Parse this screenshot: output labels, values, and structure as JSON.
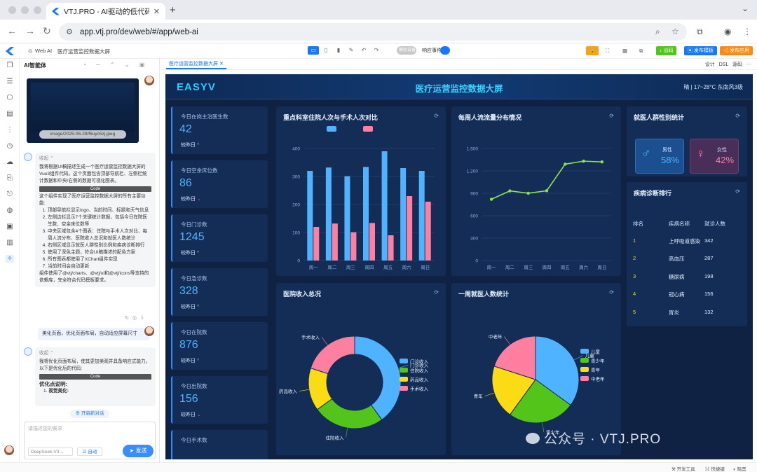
{
  "browser": {
    "tab_title": "VTJ.PRO - AI驱动的低代码开发",
    "url": "app.vtj.pro/dev/web/#/app/web-ai"
  },
  "toolbar": {
    "crumb_app": "Web AI",
    "crumb_page": "医疗运营监控数据大屏",
    "toggle1": "模拟设备",
    "toggle2_label": "响应事件",
    "btn_code": "出码",
    "btn_publish_tpl": "发布模板",
    "btn_publish_app": "发布应用"
  },
  "ai": {
    "title": "AI智能体",
    "image_caption": "image/2025-05-28/f6uyc5zj.jpeg",
    "fold": "收起",
    "msg1_intro": "我将根据UI稿描述生成一个医疗运营监控数据大屏的Vue3组件代码。这个页面包含顶部导航栏、左侧栏统计数据和中央/右侧的数据可视化图表。",
    "code_label": "Code",
    "msg1_summary": "这个组件实现了医疗运营监控数据大屏的所有主要功能:",
    "msg1_items": [
      "顶部导航栏显示logo、当前时间、标题和天气信息",
      "左侧边栏显示7个关键统计数据，包括今日在院医生数、空余床位数等",
      "中央区域包含4个图表：住院与手术人次对比、每周人流分布、医院收入总况和就医人数统计",
      "右侧区域显示就医人群性别比例和疾病诊断排行",
      "使用了深色主题，符合UI稿描述的配色方案",
      "所有图表都使用了XChart组件实现",
      "当前时间会自动更新"
    ],
    "msg1_footer": "组件使用了@vtj/charts、@vtj/ui和@vtj/icons等支持的依赖库，完全符合代码模板要求。",
    "user_msg": "美化页面，优化页面布局，自动适应屏幕尺寸",
    "msg2_intro": "我将优化页面布局，使其更加美观并具备响应式能力。以下是优化后的代码:",
    "msg2_heading": "优化点说明:",
    "msg2_item": "视觉美化:",
    "new_chat": "开启新对话",
    "input_placeholder": "请描述您的需求",
    "model": "DeepSeek-V3",
    "auto_label": "自动",
    "send_label": "发送"
  },
  "editor": {
    "tab": "医疗运营监控数据大屏",
    "right_links": [
      "设计",
      "DSL",
      "源码"
    ]
  },
  "dashboard": {
    "brand": "EASYV",
    "title": "医疗运营监控数据大屏",
    "weather": "晴 | 17~28°C 东南风3级",
    "stats": [
      {
        "label": "今日在岗主治医生数",
        "value": "42",
        "compare": "较昨日",
        "trend": "up"
      },
      {
        "label": "今日空余床位数",
        "value": "86",
        "compare": "较昨日",
        "trend": "down"
      },
      {
        "label": "今日门诊数",
        "value": "1245",
        "compare": "较昨日",
        "trend": "up"
      },
      {
        "label": "今日急诊数",
        "value": "328",
        "compare": "较昨日",
        "trend": "up"
      },
      {
        "label": "今日在院数",
        "value": "876",
        "compare": "较昨日",
        "trend": "up"
      },
      {
        "label": "今日出院数",
        "value": "156",
        "compare": "较昨日",
        "trend": "down"
      },
      {
        "label": "今日手术数",
        "value": "",
        "compare": "",
        "trend": ""
      }
    ],
    "panels": {
      "bar_title": "重点科室住院人次与手术人次对比",
      "line_title": "每周人流流量分布情况",
      "gender_title": "就医人群性别统计",
      "rank_title": "疾病诊断排行",
      "donut_title": "医院收入总况",
      "pie_title": "一周就医人数统计"
    },
    "gender": {
      "male_label": "男性",
      "male_pct": "58%",
      "female_label": "女性",
      "female_pct": "42%"
    },
    "rank": {
      "headers": [
        "排名",
        "疾病名称",
        "就诊人数"
      ],
      "rows": [
        {
          "rank": "1",
          "name": "上呼吸道感染",
          "count": "342"
        },
        {
          "rank": "2",
          "name": "高血压",
          "count": "287"
        },
        {
          "rank": "3",
          "name": "糖尿病",
          "count": "198"
        },
        {
          "rank": "4",
          "name": "冠心病",
          "count": "156"
        },
        {
          "rank": "5",
          "name": "胃炎",
          "count": "132"
        }
      ]
    }
  },
  "chart_data": [
    {
      "type": "bar",
      "title": "重点科室住院人次与手术人次对比",
      "categories": [
        "周一",
        "周二",
        "周三",
        "周四",
        "周五",
        "周六",
        "周日"
      ],
      "ylim": [
        0,
        400
      ],
      "yticks": [
        "0",
        "100",
        "200",
        "300",
        "400"
      ],
      "series": [
        {
          "values": [
            320,
            332,
            301,
            334,
            390,
            330,
            320
          ],
          "color": "#4fb3ff"
        },
        {
          "values": [
            120,
            132,
            101,
            134,
            90,
            230,
            210
          ],
          "color": "#ff7fa0"
        }
      ]
    },
    {
      "type": "line",
      "title": "每周人流流量分布情况",
      "categories": [
        "周一",
        "周二",
        "周三",
        "周四",
        "周五",
        "周六",
        "周日"
      ],
      "ylim": [
        0,
        1500
      ],
      "yticks": [
        "0",
        "300",
        "600",
        "900",
        "1,200",
        "1,500"
      ],
      "values": [
        820,
        932,
        901,
        934,
        1290,
        1330,
        1320
      ],
      "color": "#8ee34b"
    },
    {
      "type": "pie",
      "title": "医院收入总况",
      "donut": true,
      "labels": [
        "门诊收入",
        "住院收入",
        "药品收入",
        "手术收入"
      ],
      "values": [
        40,
        25,
        15,
        20
      ],
      "colors": [
        "#4fb3ff",
        "#52c41a",
        "#fadb14",
        "#ff7fa0"
      ]
    },
    {
      "type": "pie",
      "title": "一周就医人数统计",
      "labels": [
        "儿童",
        "青少年",
        "青年",
        "中老年"
      ],
      "values": [
        35,
        25,
        20,
        20
      ],
      "colors": [
        "#4fb3ff",
        "#52c41a",
        "#fadb14",
        "#ff7fa0"
      ]
    }
  ],
  "watermark": "公众号 · VTJ.PRO",
  "statusbar": [
    "开发工具",
    "快捷键",
    "暗黑"
  ]
}
